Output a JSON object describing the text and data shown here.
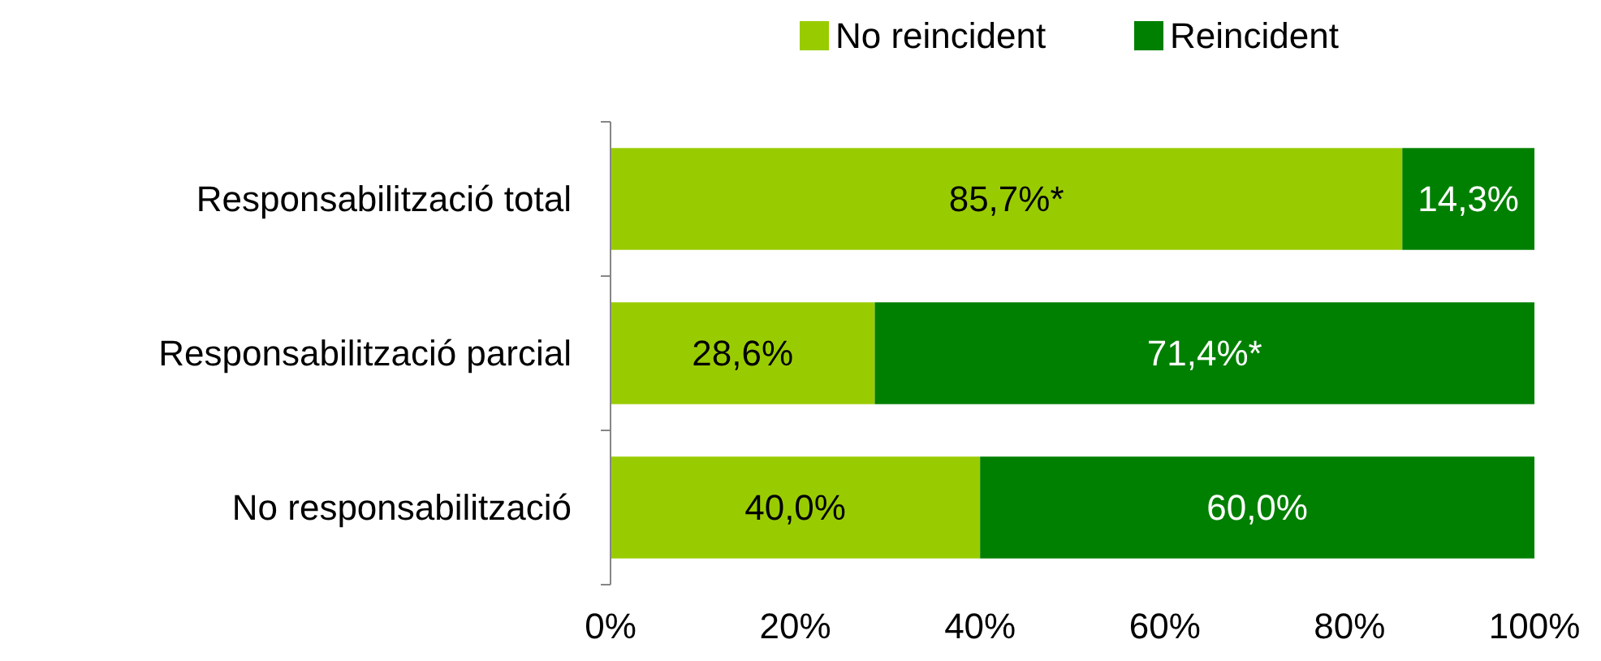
{
  "chart_data": {
    "type": "bar",
    "orientation": "horizontal",
    "stacked": true,
    "categories": [
      "Responsabilització total",
      "Responsabilització parcial",
      "No responsabilització"
    ],
    "series": [
      {
        "name": "No reincident",
        "color": "#99cc00",
        "values": [
          85.7,
          28.6,
          40.0
        ],
        "value_labels": [
          "85,7%*",
          "28,6%",
          "40,0%"
        ]
      },
      {
        "name": "Reincident",
        "color": "#008000",
        "values": [
          14.3,
          71.4,
          60.0
        ],
        "value_labels": [
          "14,3%",
          "71,4%*",
          "60,0%"
        ]
      }
    ],
    "xlim": [
      0,
      100
    ],
    "xticks": [
      {
        "value": 0,
        "label": "0%"
      },
      {
        "value": 20,
        "label": "20%"
      },
      {
        "value": 40,
        "label": "40%"
      },
      {
        "value": 60,
        "label": "60%"
      },
      {
        "value": 80,
        "label": "80%"
      },
      {
        "value": 100,
        "label": "100%"
      }
    ],
    "legend": "top",
    "grid": false
  }
}
